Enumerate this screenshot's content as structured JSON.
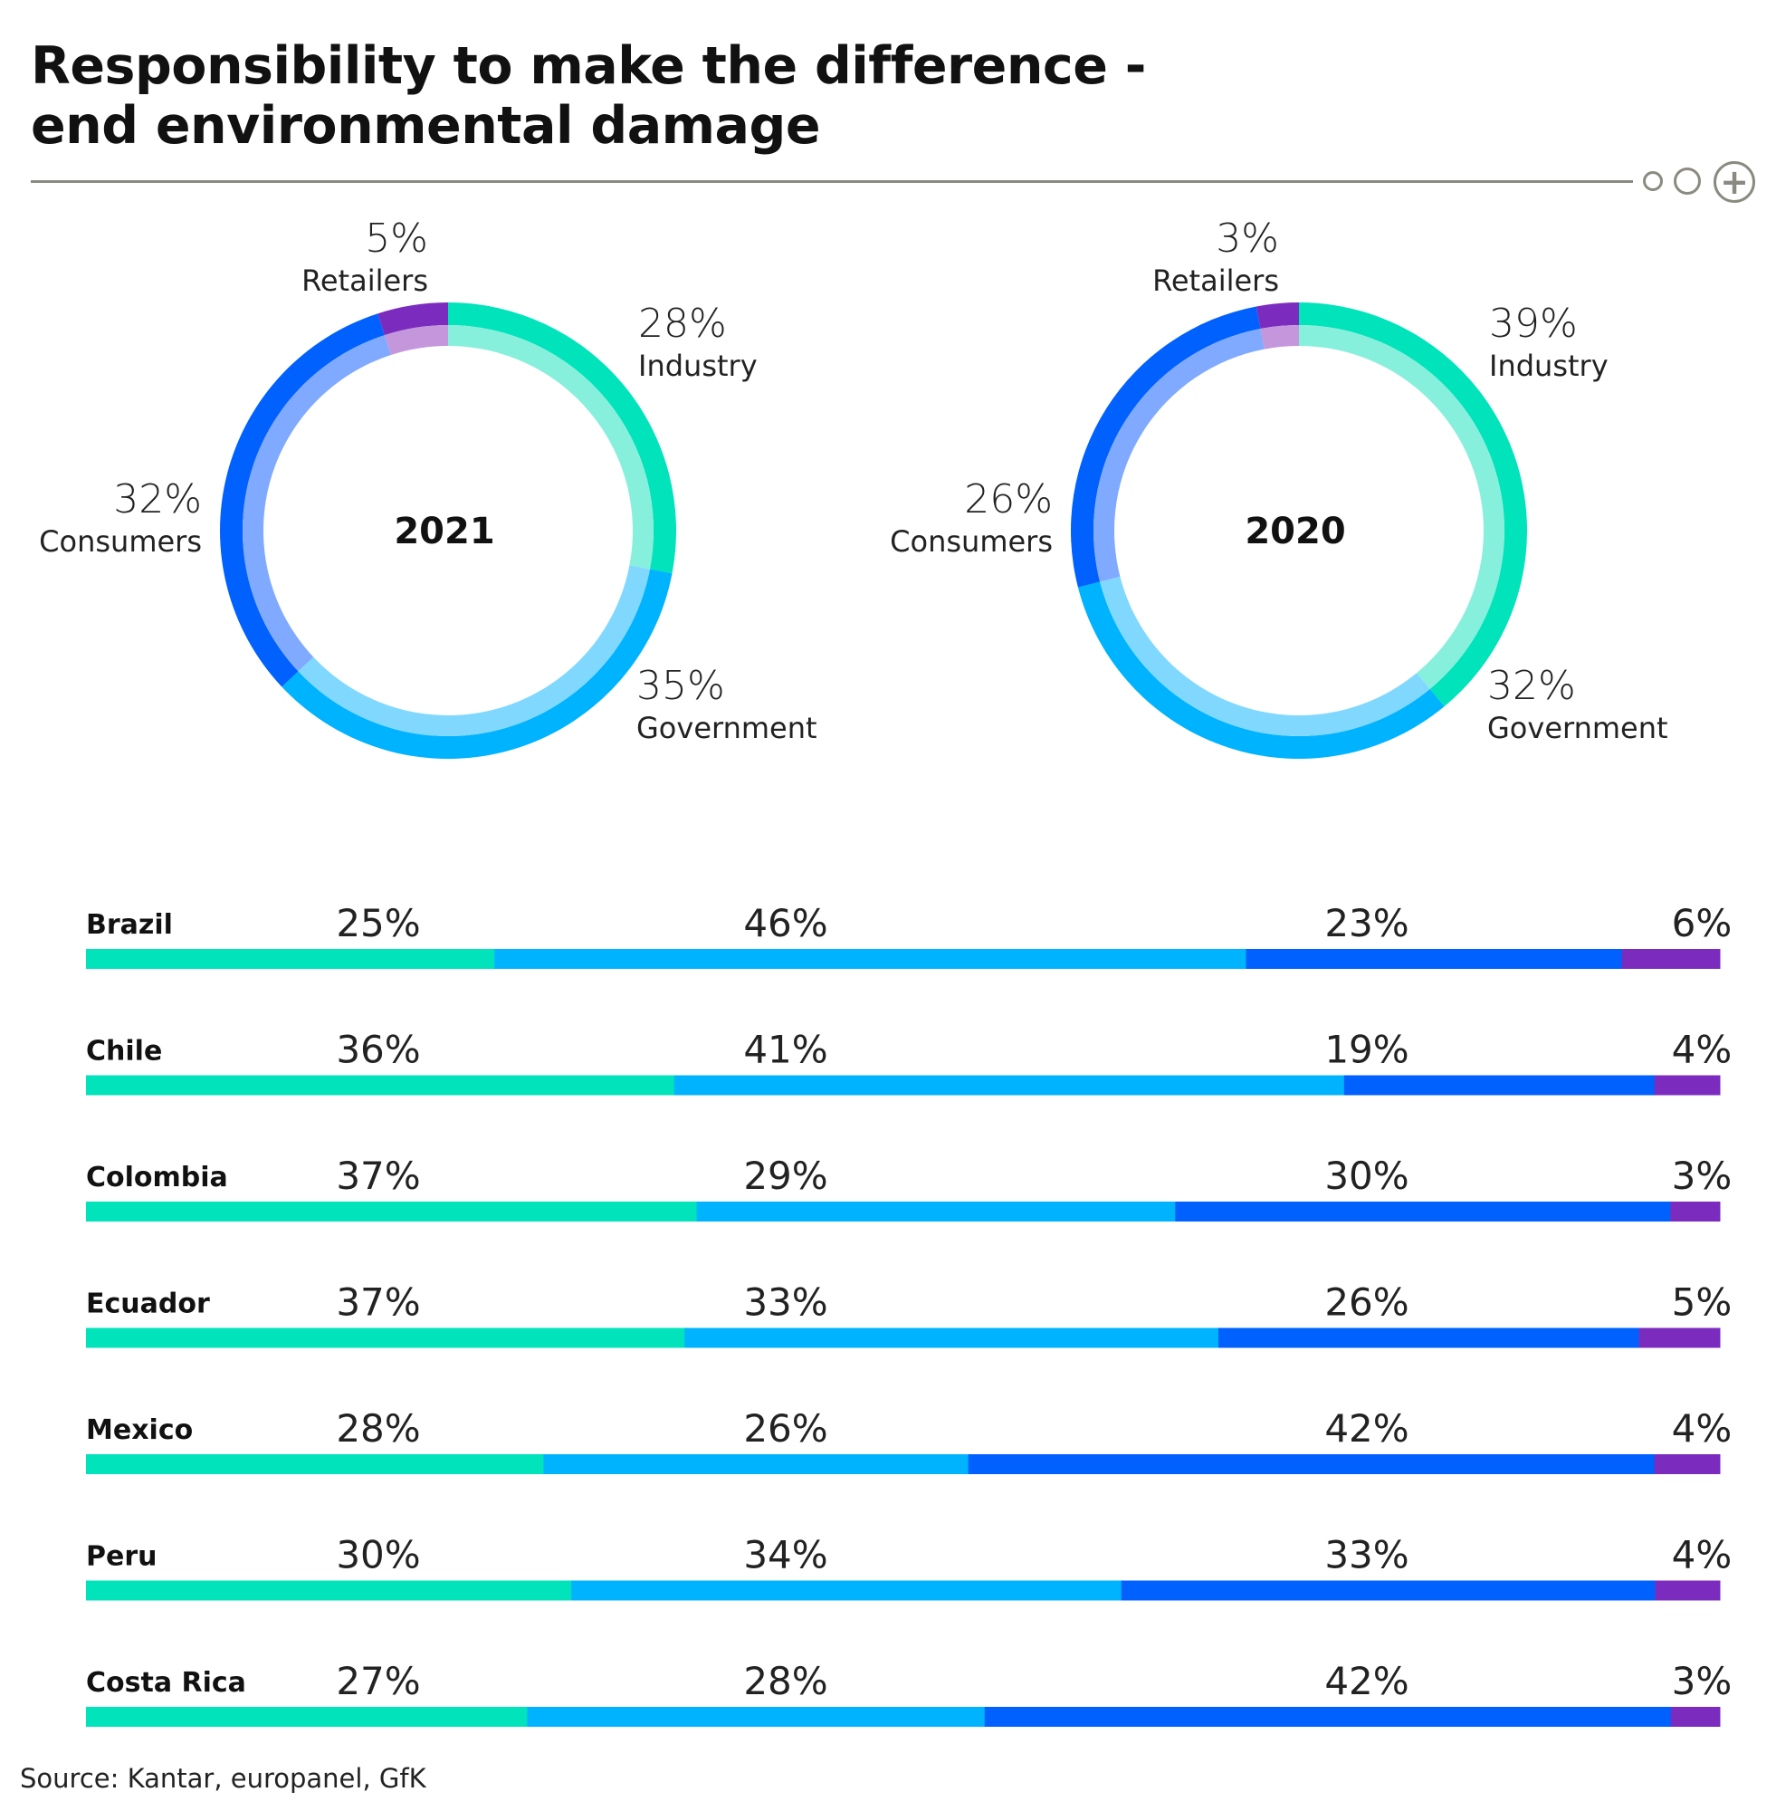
{
  "title": {
    "line1": "Responsibility to make the difference -",
    "line2": "end environmental damage"
  },
  "controls": [
    {
      "name": "pager-dot-small-icon"
    },
    {
      "name": "pager-dot-icon"
    },
    {
      "name": "expand-plus-icon",
      "symbol": "+"
    }
  ],
  "colors": {
    "Industry": "#00e3bb",
    "Government": "#00b3ff",
    "Consumers": "#0061ff",
    "Retailers": "#7b2cbf",
    "Industry_light": "#86f0dc",
    "Government_light": "#80d8ff",
    "Consumers_light": "#80aaff",
    "Retailers_light": "#c497dd"
  },
  "chart_data": [
    {
      "type": "pie",
      "variant": "donut",
      "center_label": "2021",
      "slices": [
        {
          "name": "Industry",
          "value": 28,
          "label": "28%"
        },
        {
          "name": "Government",
          "value": 35,
          "label": "35%"
        },
        {
          "name": "Consumers",
          "value": 32,
          "label": "32%"
        },
        {
          "name": "Retailers",
          "value": 5,
          "label": "5%"
        }
      ]
    },
    {
      "type": "pie",
      "variant": "donut",
      "center_label": "2020",
      "slices": [
        {
          "name": "Industry",
          "value": 39,
          "label": "39%"
        },
        {
          "name": "Government",
          "value": 32,
          "label": "32%"
        },
        {
          "name": "Consumers",
          "value": 26,
          "label": "26%"
        },
        {
          "name": "Retailers",
          "value": 3,
          "label": "3%"
        }
      ]
    },
    {
      "type": "bar",
      "orientation": "horizontal",
      "stacked": true,
      "categories": [
        "Brazil",
        "Chile",
        "Colombia",
        "Ecuador",
        "Mexico",
        "Peru",
        "Costa Rica"
      ],
      "series": [
        {
          "name": "Industry",
          "values": [
            25,
            36,
            37,
            37,
            28,
            30,
            27
          ]
        },
        {
          "name": "Government",
          "values": [
            46,
            41,
            29,
            33,
            26,
            34,
            28
          ]
        },
        {
          "name": "Consumers",
          "values": [
            23,
            19,
            30,
            26,
            42,
            33,
            42
          ]
        },
        {
          "name": "Retailers",
          "values": [
            6,
            4,
            3,
            5,
            4,
            4,
            3
          ]
        }
      ]
    }
  ],
  "source": "Source: Kantar, europanel, GfK"
}
